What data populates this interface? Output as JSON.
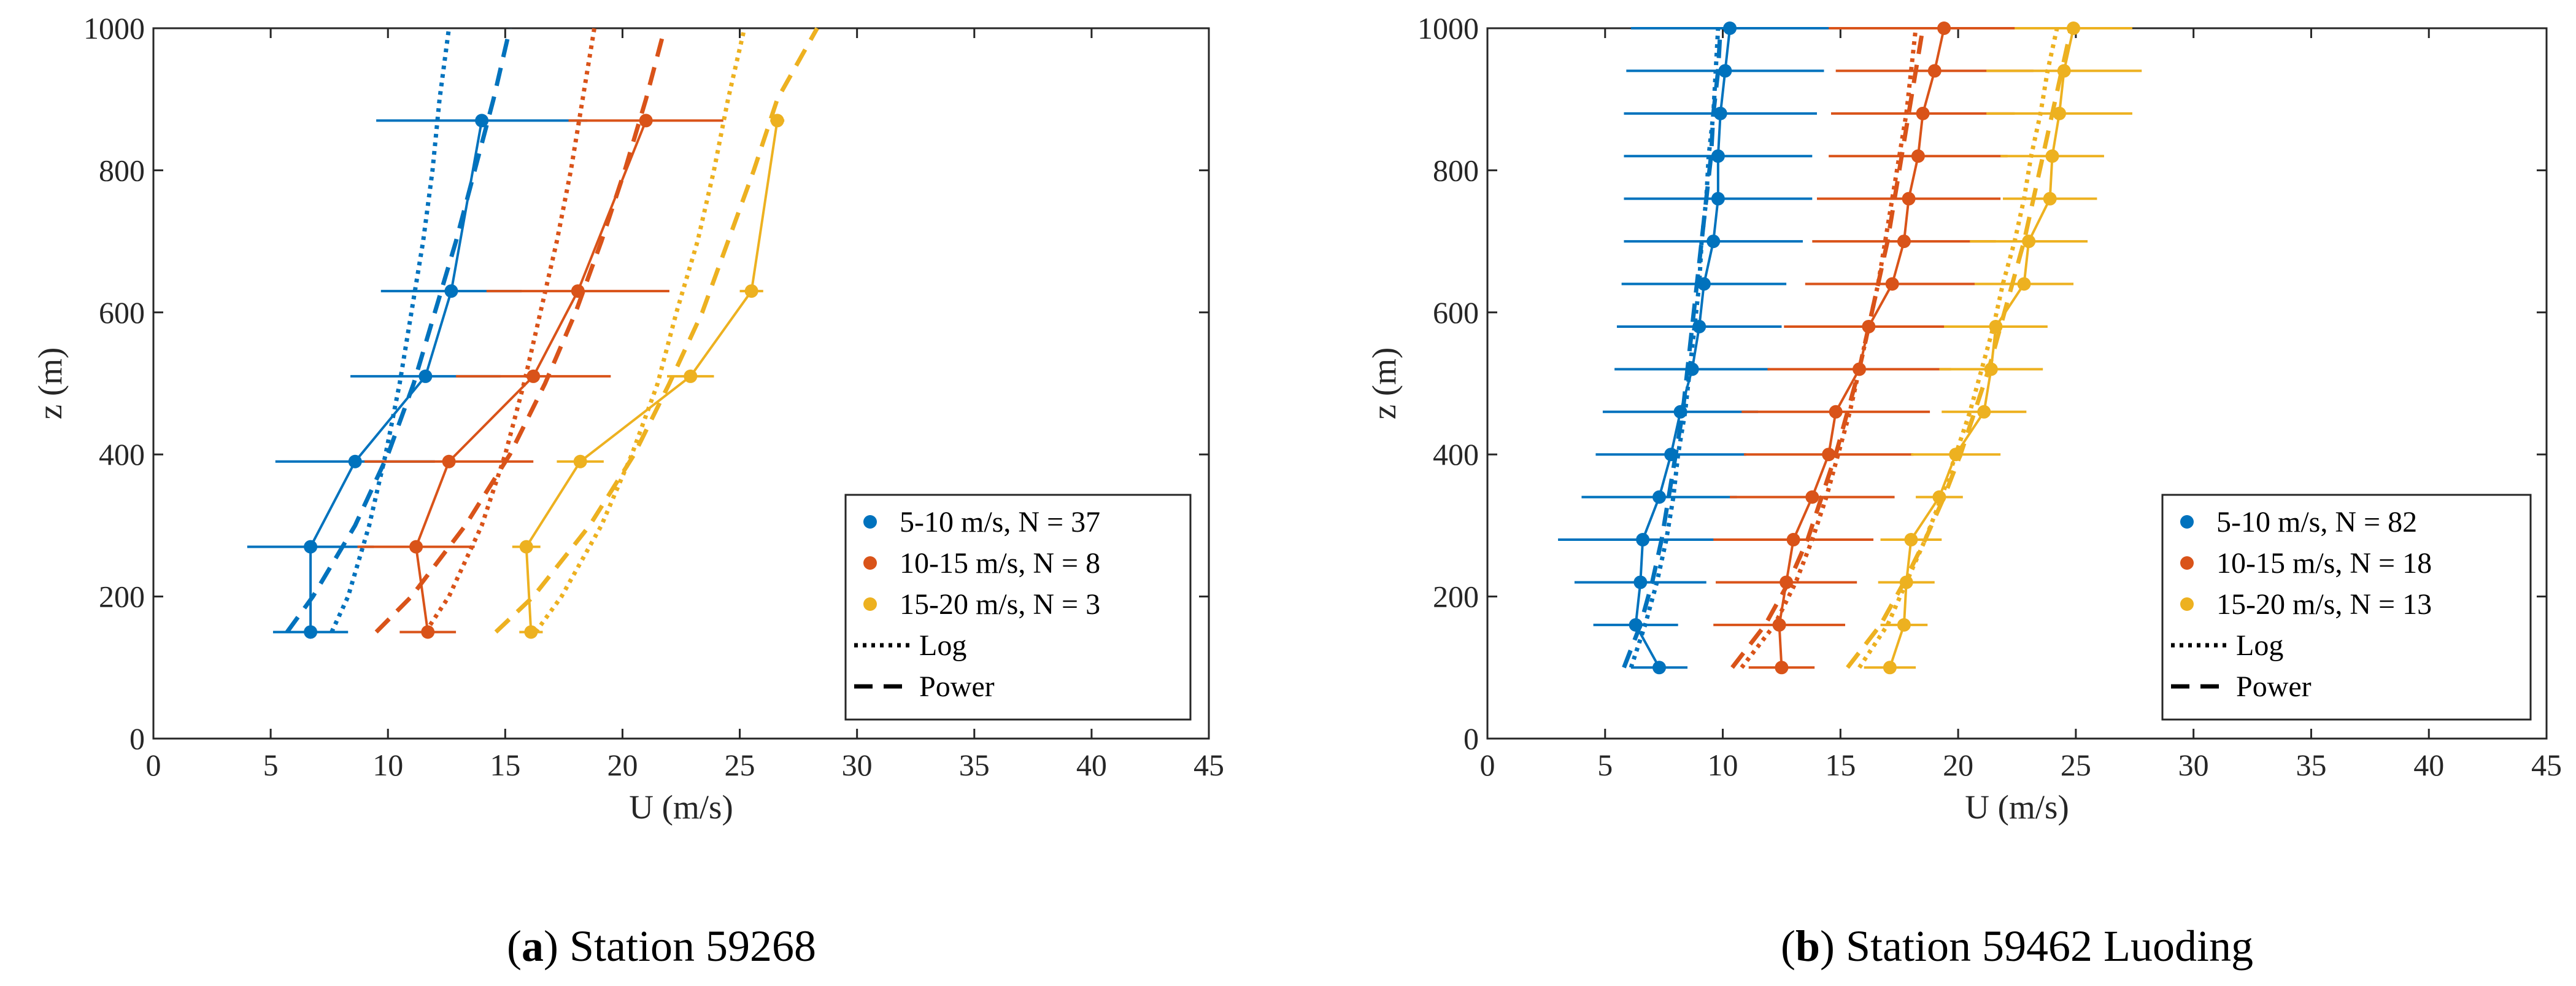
{
  "chart_data": [
    {
      "panel": "a",
      "type": "line",
      "caption_letter": "a",
      "caption_text": " Station 59268",
      "xlabel": "U (m/s)",
      "ylabel": "z (m)",
      "xlim": [
        0,
        45
      ],
      "ylim": [
        0,
        1000
      ],
      "xticks": [
        0,
        5,
        10,
        15,
        20,
        25,
        30,
        35,
        40,
        45
      ],
      "yticks": [
        0,
        200,
        400,
        600,
        800,
        1000
      ],
      "legend_position": "bottom-right",
      "legend": [
        "5-10 m/s, N = 37",
        "10-15 m/s, N = 8",
        "15-20 m/s, N = 3",
        "Log",
        "Power"
      ],
      "series": [
        {
          "name": "5-10 m/s, N = 37",
          "color": "#0072BD",
          "z": [
            150,
            270,
            390,
            510,
            630,
            870
          ],
          "u": [
            6.7,
            6.7,
            8.6,
            11.6,
            12.7,
            14.0
          ],
          "u_err": [
            1.6,
            2.7,
            3.4,
            3.2,
            3.0,
            4.5
          ],
          "log": {
            "z": [
              150,
              200,
              300,
              400,
              500,
              600,
              700,
              800,
              900,
              1000
            ],
            "u": [
              7.6,
              8.3,
              9.2,
              9.9,
              10.5,
              11.0,
              11.5,
              11.9,
              12.2,
              12.6
            ]
          },
          "power": {
            "z": [
              150,
              200,
              300,
              400,
              500,
              600,
              700,
              800,
              900,
              1000
            ],
            "u": [
              5.7,
              6.8,
              8.6,
              10.0,
              11.1,
              12.0,
              12.9,
              13.7,
              14.5,
              15.2
            ]
          }
        },
        {
          "name": "10-15 m/s, N = 8",
          "color": "#D95319",
          "z": [
            150,
            270,
            390,
            510,
            630,
            870
          ],
          "u": [
            11.7,
            11.2,
            12.6,
            16.2,
            18.1,
            21.0
          ],
          "u_err": [
            1.2,
            2.5,
            3.6,
            3.3,
            3.9,
            3.3
          ],
          "log": {
            "z": [
              150,
              200,
              300,
              400,
              500,
              600,
              700,
              800,
              900,
              1000
            ],
            "u": [
              11.6,
              12.6,
              14.0,
              15.0,
              15.8,
              16.5,
              17.2,
              17.8,
              18.3,
              18.8
            ]
          },
          "power": {
            "z": [
              150,
              200,
              300,
              400,
              500,
              600,
              700,
              800,
              900,
              1000
            ],
            "u": [
              9.5,
              11.0,
              13.3,
              15.2,
              16.7,
              18.0,
              19.1,
              20.1,
              21.0,
              21.8
            ]
          }
        },
        {
          "name": "15-20 m/s, N = 3",
          "color": "#EDB120",
          "z": [
            150,
            270,
            390,
            510,
            630,
            870
          ],
          "u": [
            16.1,
            15.9,
            18.2,
            22.9,
            25.5,
            26.6
          ],
          "u_err": [
            0.5,
            0.6,
            1.0,
            1.0,
            0.5,
            0.3
          ],
          "log": {
            "z": [
              150,
              200,
              300,
              400,
              500,
              600,
              700,
              800,
              900,
              1000
            ],
            "u": [
              16.3,
              17.4,
              19.1,
              20.4,
              21.5,
              22.3,
              23.2,
              23.9,
              24.5,
              25.2
            ]
          },
          "power": {
            "z": [
              150,
              200,
              300,
              400,
              500,
              600,
              700,
              800,
              900,
              1000
            ],
            "u": [
              14.6,
              16.2,
              18.6,
              20.5,
              22.0,
              23.4,
              24.5,
              25.6,
              26.6,
              28.3
            ]
          }
        }
      ]
    },
    {
      "panel": "b",
      "type": "line",
      "caption_letter": "b",
      "caption_text": " Station 59462 Luoding",
      "xlabel": "U (m/s)",
      "ylabel": "z (m)",
      "xlim": [
        0,
        45
      ],
      "ylim": [
        0,
        1000
      ],
      "xticks": [
        0,
        5,
        10,
        15,
        20,
        25,
        30,
        35,
        40,
        45
      ],
      "yticks": [
        0,
        200,
        400,
        600,
        800,
        1000
      ],
      "legend_position": "bottom-right",
      "legend": [
        "5-10 m/s, N = 82",
        "10-15 m/s, N = 18",
        "15-20 m/s, N = 13",
        "Log",
        "Power"
      ],
      "series": [
        {
          "name": "5-10 m/s, N = 82",
          "color": "#0072BD",
          "z": [
            100,
            160,
            220,
            280,
            340,
            400,
            460,
            520,
            580,
            640,
            700,
            760,
            820,
            880,
            940,
            1000
          ],
          "u": [
            7.3,
            6.3,
            6.5,
            6.6,
            7.3,
            7.8,
            8.2,
            8.7,
            9.0,
            9.2,
            9.6,
            9.8,
            9.8,
            9.9,
            10.1,
            10.3
          ],
          "u_err": [
            1.2,
            1.8,
            2.8,
            3.6,
            3.3,
            3.2,
            3.3,
            3.3,
            3.5,
            3.5,
            3.8,
            4.0,
            4.0,
            4.1,
            4.2,
            4.2
          ],
          "log": {
            "z": [
              100,
              160,
              220,
              280,
              340,
              400,
              460,
              520,
              580,
              640,
              700,
              760,
              820,
              880,
              940,
              1000
            ],
            "u": [
              6.1,
              6.7,
              7.2,
              7.6,
              7.9,
              8.1,
              8.4,
              8.6,
              8.8,
              9.0,
              9.1,
              9.3,
              9.4,
              9.6,
              9.7,
              9.8
            ]
          },
          "power": {
            "z": [
              100,
              160,
              220,
              280,
              340,
              400,
              460,
              520,
              580,
              640,
              700,
              760,
              820,
              880,
              940,
              1000
            ],
            "u": [
              5.8,
              6.5,
              7.0,
              7.4,
              7.7,
              8.0,
              8.3,
              8.5,
              8.7,
              8.9,
              9.1,
              9.3,
              9.5,
              9.6,
              9.8,
              9.9
            ]
          }
        },
        {
          "name": "10-15 m/s, N = 18",
          "color": "#D95319",
          "z": [
            100,
            160,
            220,
            280,
            340,
            400,
            460,
            520,
            580,
            640,
            700,
            760,
            820,
            880,
            940,
            1000
          ],
          "u": [
            12.5,
            12.4,
            12.7,
            13.0,
            13.8,
            14.5,
            14.8,
            15.8,
            16.2,
            17.2,
            17.7,
            17.9,
            18.3,
            18.5,
            19.0,
            19.4
          ],
          "u_err": [
            1.4,
            2.8,
            3.0,
            3.4,
            3.5,
            3.6,
            4.0,
            3.9,
            3.6,
            3.7,
            3.9,
            3.9,
            3.8,
            3.9,
            4.2,
            4.9
          ],
          "log": {
            "z": [
              100,
              160,
              220,
              280,
              340,
              400,
              460,
              520,
              580,
              640,
              700,
              760,
              820,
              880,
              940,
              1000
            ],
            "u": [
              10.8,
              12.2,
              13.1,
              13.8,
              14.4,
              14.9,
              15.4,
              15.8,
              16.2,
              16.6,
              16.9,
              17.2,
              17.5,
              17.8,
              18.0,
              18.2
            ]
          },
          "power": {
            "z": [
              100,
              160,
              220,
              280,
              340,
              400,
              460,
              520,
              580,
              640,
              700,
              760,
              820,
              880,
              940,
              1000
            ],
            "u": [
              10.4,
              11.8,
              12.8,
              13.6,
              14.2,
              14.8,
              15.3,
              15.8,
              16.2,
              16.6,
              17.0,
              17.3,
              17.6,
              17.9,
              18.2,
              18.5
            ]
          }
        },
        {
          "name": "15-20 m/s, N = 13",
          "color": "#EDB120",
          "z": [
            100,
            160,
            220,
            280,
            340,
            400,
            460,
            520,
            580,
            640,
            700,
            760,
            820,
            880,
            940,
            1000
          ],
          "u": [
            17.1,
            17.7,
            17.8,
            18.0,
            19.2,
            19.9,
            21.1,
            21.4,
            21.6,
            22.8,
            23.0,
            23.9,
            24.0,
            24.3,
            24.5,
            24.9
          ],
          "u_err": [
            1.1,
            1.0,
            1.2,
            1.3,
            1.0,
            1.9,
            1.8,
            2.2,
            2.2,
            2.1,
            2.5,
            2.0,
            2.2,
            3.1,
            3.3,
            2.5
          ],
          "log": {
            "z": [
              100,
              160,
              220,
              280,
              340,
              400,
              460,
              520,
              580,
              640,
              700,
              760,
              820,
              880,
              940,
              1000
            ],
            "u": [
              15.8,
              17.0,
              17.8,
              18.6,
              19.3,
              19.9,
              20.5,
              21.0,
              21.5,
              21.9,
              22.4,
              22.8,
              23.1,
              23.5,
              23.8,
              24.2
            ]
          },
          "power": {
            "z": [
              100,
              160,
              220,
              280,
              340,
              400,
              460,
              520,
              580,
              640,
              700,
              760,
              820,
              880,
              940,
              1000
            ],
            "u": [
              15.3,
              16.7,
              17.7,
              18.6,
              19.4,
              20.1,
              20.7,
              21.3,
              21.8,
              22.3,
              22.8,
              23.2,
              23.6,
              24.0,
              24.4,
              24.8
            ]
          }
        }
      ]
    }
  ]
}
